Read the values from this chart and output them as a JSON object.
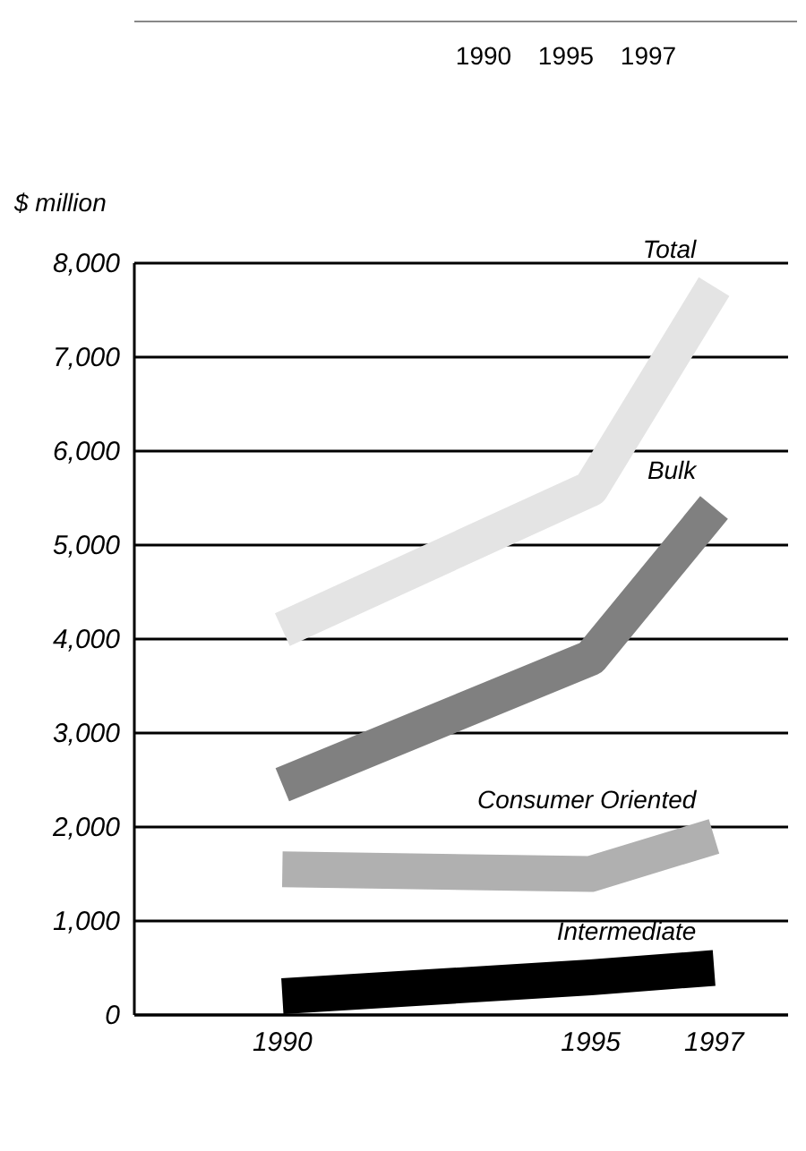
{
  "chart_data": {
    "type": "line",
    "ylabel": "$ million",
    "annotations": [
      "1990",
      "1995",
      "1997"
    ],
    "x": [
      1990,
      1995,
      1997
    ],
    "xlim": [
      1987.6,
      1998.2
    ],
    "xticks": [
      1990,
      1995,
      1997
    ],
    "ylim": [
      0,
      8000
    ],
    "yticks": [
      {
        "value": 0,
        "label": "0"
      },
      {
        "value": 1000,
        "label": "1,000"
      },
      {
        "value": 2000,
        "label": "2,000"
      },
      {
        "value": 3000,
        "label": "3,000"
      },
      {
        "value": 4000,
        "label": "4,000"
      },
      {
        "value": 5000,
        "label": "5,000"
      },
      {
        "value": 6000,
        "label": "6,000"
      },
      {
        "value": 7000,
        "label": "7,000"
      },
      {
        "value": 8000,
        "label": "8,000"
      }
    ],
    "grid": "y",
    "series": [
      {
        "name": "Total",
        "color": "#e4e4e4",
        "values": [
          4100,
          5600,
          7750
        ]
      },
      {
        "name": "Bulk",
        "color": "#808080",
        "values": [
          2450,
          3800,
          5400
        ]
      },
      {
        "name": "Consumer Oriented",
        "color": "#b0b0b0",
        "values": [
          1550,
          1500,
          1900
        ]
      },
      {
        "name": "Intermediate",
        "color": "#000000",
        "values": [
          200,
          400,
          500
        ]
      }
    ]
  }
}
